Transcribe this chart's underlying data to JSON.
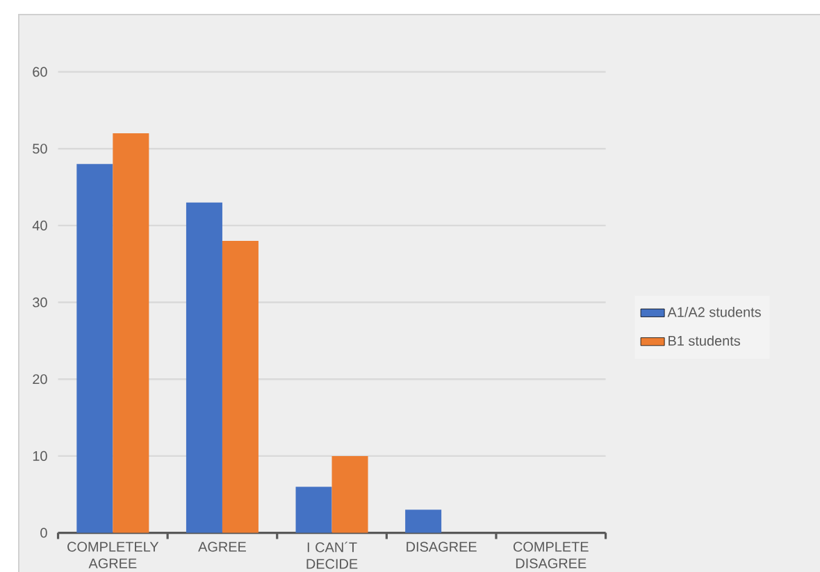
{
  "chart_data": {
    "type": "bar",
    "categories": [
      "COMPLETELY AGREE",
      "AGREE",
      "I CAN´T DECIDE",
      "DISAGREE",
      "COMPLETE DISAGREE"
    ],
    "series": [
      {
        "name": "A1/A2 students",
        "color": "#4472c4",
        "values": [
          48,
          43,
          6,
          3,
          0
        ]
      },
      {
        "name": "B1 students",
        "color": "#ed7d31",
        "values": [
          52,
          38,
          10,
          0,
          0
        ]
      }
    ],
    "ylim": [
      0,
      60
    ],
    "yticks": [
      0,
      10,
      20,
      30,
      40,
      50,
      60
    ],
    "grid": "y",
    "legend": "right"
  }
}
